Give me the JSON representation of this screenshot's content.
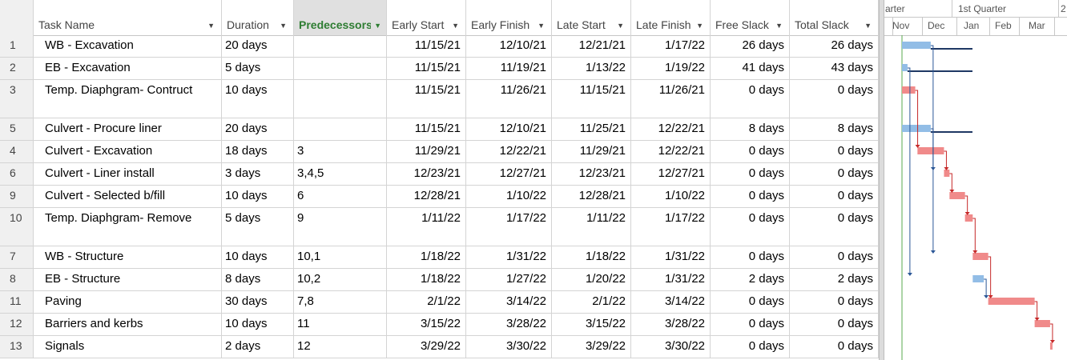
{
  "columns": {
    "task_name": "Task Name",
    "duration": "Duration",
    "predecessors": "Predecessors",
    "early_start": "Early Start",
    "early_finish": "Early Finish",
    "late_start": "Late Start",
    "late_finish": "Late Finish",
    "free_slack": "Free Slack",
    "total_slack": "Total Slack"
  },
  "tasks": [
    {
      "id": "1",
      "name": "WB - Excavation",
      "duration": "20 days",
      "pred": "",
      "es": "11/15/21",
      "ef": "12/10/21",
      "ls": "12/21/21",
      "lf": "1/17/22",
      "fs": "26 days",
      "ts": "26 days"
    },
    {
      "id": "2",
      "name": "EB - Excavation",
      "duration": "5 days",
      "pred": "",
      "es": "11/15/21",
      "ef": "11/19/21",
      "ls": "1/13/22",
      "lf": "1/19/22",
      "fs": "41 days",
      "ts": "43 days"
    },
    {
      "id": "3",
      "name": "Temp. Diaphgram- Contruct",
      "duration": "10 days",
      "pred": "",
      "es": "11/15/21",
      "ef": "11/26/21",
      "ls": "11/15/21",
      "lf": "11/26/21",
      "fs": "0 days",
      "ts": "0 days"
    },
    {
      "id": "5",
      "name": "Culvert - Procure liner",
      "duration": "20 days",
      "pred": "",
      "es": "11/15/21",
      "ef": "12/10/21",
      "ls": "11/25/21",
      "lf": "12/22/21",
      "fs": "8 days",
      "ts": "8 days"
    },
    {
      "id": "4",
      "name": "Culvert - Excavation",
      "duration": "18 days",
      "pred": "3",
      "es": "11/29/21",
      "ef": "12/22/21",
      "ls": "11/29/21",
      "lf": "12/22/21",
      "fs": "0 days",
      "ts": "0 days"
    },
    {
      "id": "6",
      "name": "Culvert - Liner install",
      "duration": "3 days",
      "pred": "3,4,5",
      "es": "12/23/21",
      "ef": "12/27/21",
      "ls": "12/23/21",
      "lf": "12/27/21",
      "fs": "0 days",
      "ts": "0 days"
    },
    {
      "id": "9",
      "name": "Culvert - Selected b/fill",
      "duration": "10 days",
      "pred": "6",
      "es": "12/28/21",
      "ef": "1/10/22",
      "ls": "12/28/21",
      "lf": "1/10/22",
      "fs": "0 days",
      "ts": "0 days"
    },
    {
      "id": "10",
      "name": "Temp. Diaphgram- Remove",
      "duration": "5 days",
      "pred": "9",
      "es": "1/11/22",
      "ef": "1/17/22",
      "ls": "1/11/22",
      "lf": "1/17/22",
      "fs": "0 days",
      "ts": "0 days"
    },
    {
      "id": "7",
      "name": "WB - Structure",
      "duration": "10 days",
      "pred": "10,1",
      "es": "1/18/22",
      "ef": "1/31/22",
      "ls": "1/18/22",
      "lf": "1/31/22",
      "fs": "0 days",
      "ts": "0 days"
    },
    {
      "id": "8",
      "name": "EB - Structure",
      "duration": "8 days",
      "pred": "10,2",
      "es": "1/18/22",
      "ef": "1/27/22",
      "ls": "1/20/22",
      "lf": "1/31/22",
      "fs": "2 days",
      "ts": "2 days"
    },
    {
      "id": "11",
      "name": "Paving",
      "duration": "30 days",
      "pred": "7,8",
      "es": "2/1/22",
      "ef": "3/14/22",
      "ls": "2/1/22",
      "lf": "3/14/22",
      "fs": "0 days",
      "ts": "0 days"
    },
    {
      "id": "12",
      "name": "Barriers and kerbs",
      "duration": "10 days",
      "pred": "11",
      "es": "3/15/22",
      "ef": "3/28/22",
      "ls": "3/15/22",
      "lf": "3/28/22",
      "fs": "0 days",
      "ts": "0 days"
    },
    {
      "id": "13",
      "name": "Signals",
      "duration": "2 days",
      "pred": "12",
      "es": "3/29/22",
      "ef": "3/30/22",
      "ls": "3/29/22",
      "lf": "3/30/22",
      "fs": "0 days",
      "ts": "0 days"
    }
  ],
  "timescale": {
    "top": [
      "arter",
      "1st Quarter",
      "2"
    ],
    "bottom": [
      "Nov",
      "Dec",
      "Jan",
      "Feb",
      "Mar"
    ]
  },
  "bar_spans": [
    {
      "start": "11/15/21",
      "finish": "12/10/21",
      "critical": false
    },
    {
      "start": "11/15/21",
      "finish": "11/19/21",
      "critical": false
    },
    {
      "start": "11/15/21",
      "finish": "11/26/21",
      "critical": true
    },
    {
      "start": "11/15/21",
      "finish": "12/10/21",
      "critical": false
    },
    {
      "start": "11/29/21",
      "finish": "12/22/21",
      "critical": true
    },
    {
      "start": "12/23/21",
      "finish": "12/27/21",
      "critical": true
    },
    {
      "start": "12/28/21",
      "finish": "1/10/22",
      "critical": true
    },
    {
      "start": "1/11/22",
      "finish": "1/17/22",
      "critical": true
    },
    {
      "start": "1/18/22",
      "finish": "1/31/22",
      "critical": true
    },
    {
      "start": "1/18/22",
      "finish": "1/27/22",
      "critical": false
    },
    {
      "start": "2/1/22",
      "finish": "3/14/22",
      "critical": true
    },
    {
      "start": "3/15/22",
      "finish": "3/28/22",
      "critical": true
    },
    {
      "start": "3/29/22",
      "finish": "3/30/22",
      "critical": true
    }
  ],
  "colors": {
    "critical_bar": "#f08a8a",
    "normal_bar": "#92bde6",
    "critical_link": "#c62828",
    "normal_link": "#2b5797",
    "slack_line": "#1f3864",
    "today_line": "#5aa84f",
    "header_active": "#2e7d32"
  }
}
